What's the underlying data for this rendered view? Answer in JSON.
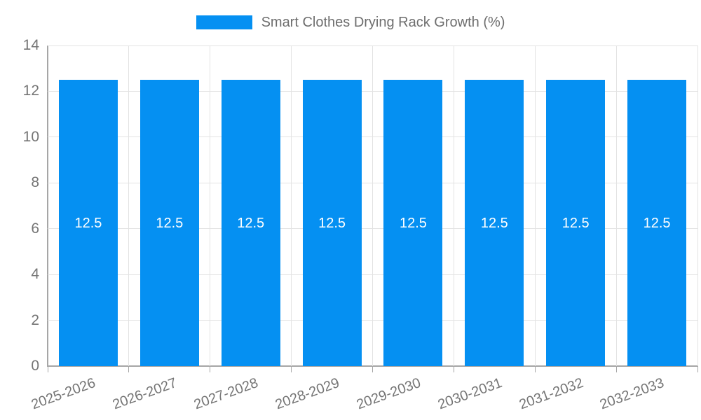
{
  "chart_data": {
    "type": "bar",
    "title": "Smart Clothes Drying Rack Growth (%)",
    "categories": [
      "2025-2026",
      "2026-2027",
      "2027-2028",
      "2028-2029",
      "2029-2030",
      "2030-2031",
      "2031-2032",
      "2032-2033"
    ],
    "values": [
      12.5,
      12.5,
      12.5,
      12.5,
      12.5,
      12.5,
      12.5,
      12.5
    ],
    "value_labels": [
      "12.5",
      "12.5",
      "12.5",
      "12.5",
      "12.5",
      "12.5",
      "12.5",
      "12.5"
    ],
    "xlabel": "",
    "ylabel": "",
    "ylim": [
      0,
      14
    ],
    "yticks": [
      0,
      2,
      4,
      6,
      8,
      10,
      12,
      14
    ],
    "grid": true,
    "legend_position": "top"
  },
  "legend": {
    "label": "Smart Clothes Drying Rack Growth (%)"
  },
  "colors": {
    "bar": "#0590F2",
    "grid": "#e3e3e3",
    "axis": "#a6a6a6",
    "tick_label": "#757575",
    "legend_label": "#6e6e6e",
    "value_label": "#ffffff",
    "background": "#ffffff"
  }
}
